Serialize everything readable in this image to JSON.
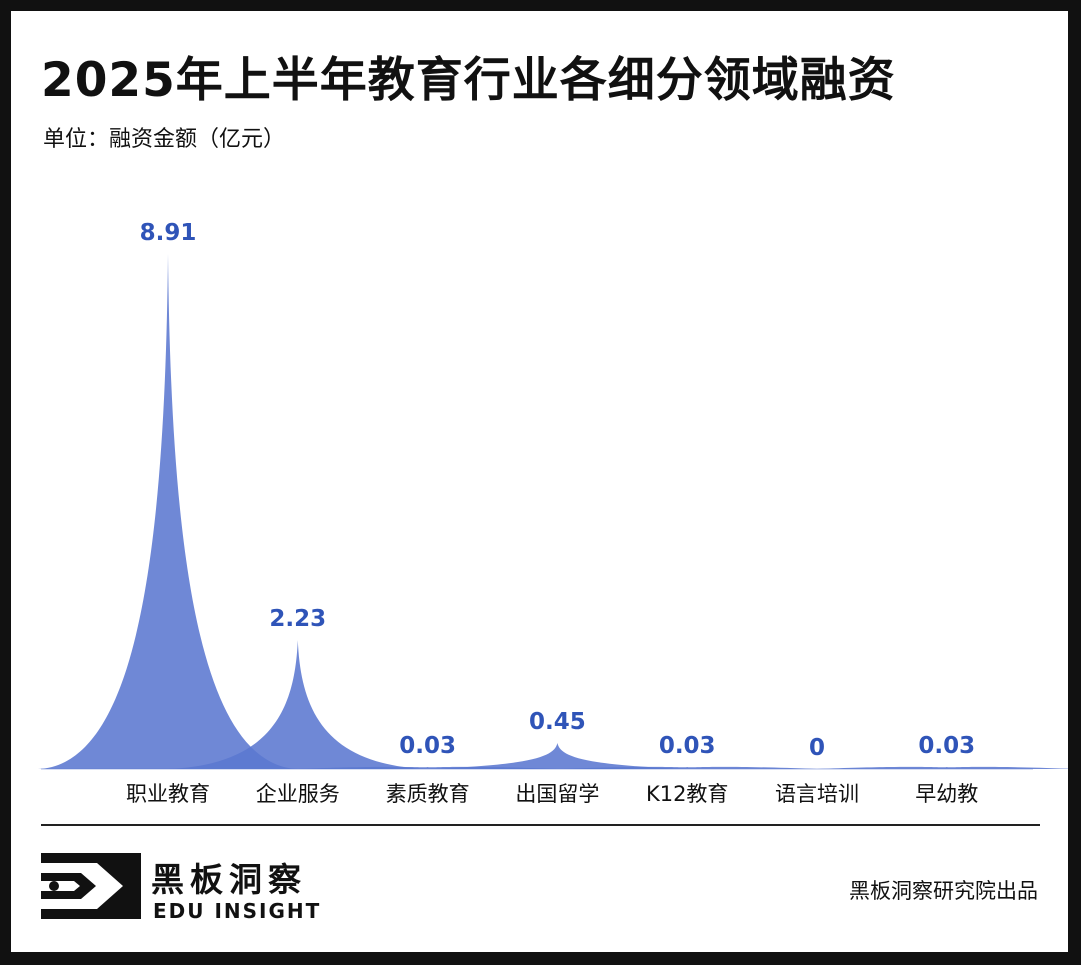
{
  "header": {
    "title": "2025年上半年教育行业各细分领域融资",
    "unit": "单位：融资金额（亿元）"
  },
  "chart_data": {
    "type": "area",
    "title": "2025年上半年教育行业各细分领域融资",
    "ylabel": "融资金额（亿元）",
    "categories": [
      "职业教育",
      "企业服务",
      "素质教育",
      "出国留学",
      "K12教育",
      "语言培训",
      "早幼教"
    ],
    "values": [
      8.91,
      2.23,
      0.03,
      0.45,
      0.03,
      0,
      0.03
    ],
    "value_labels": [
      "8.91",
      "2.23",
      "0.03",
      "0.45",
      "0.03",
      "0",
      "0.03"
    ],
    "ylim": [
      0,
      8.91
    ],
    "grid": false,
    "colors": {
      "fill": "#5b78d0",
      "label": "#2f54b8"
    }
  },
  "footer": {
    "brand_cn": "黑板洞察",
    "brand_en": "EDU INSIGHT",
    "credit": "黑板洞察研究院出品"
  }
}
